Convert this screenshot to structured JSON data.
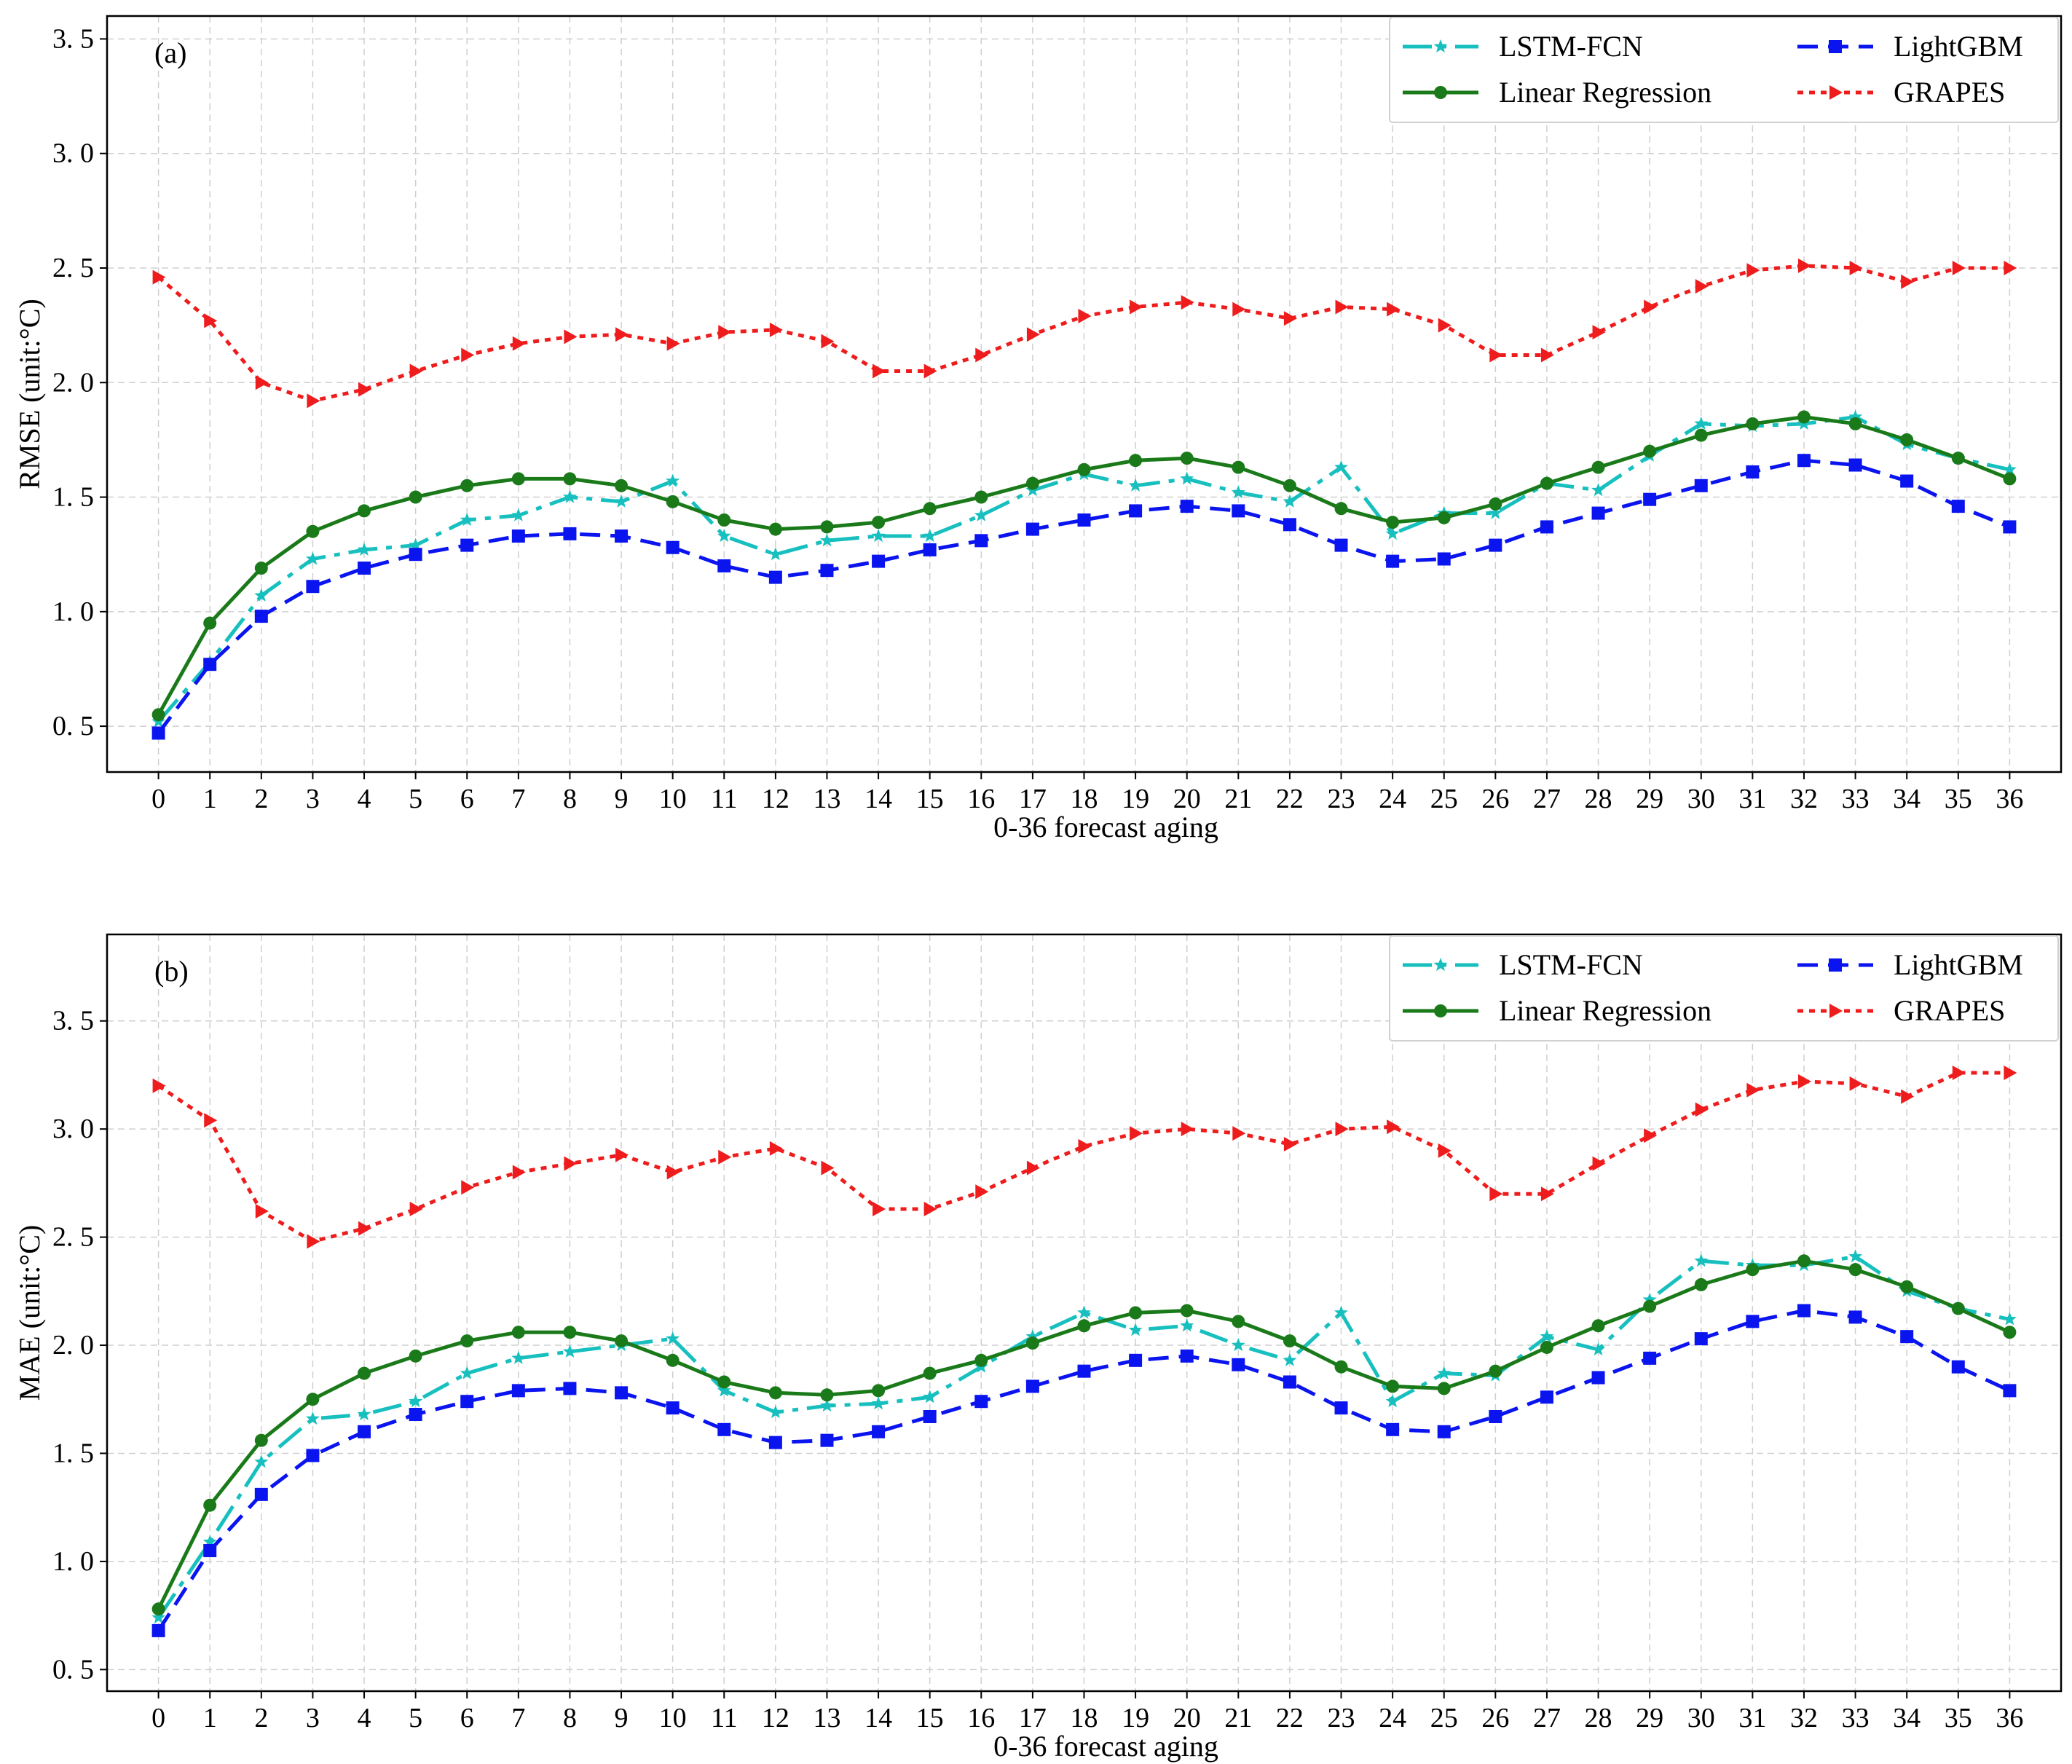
{
  "chart_data": [
    {
      "type": "line",
      "panel_label": "(a)",
      "ylabel": "RMSE (unit:°C)",
      "xlabel": "0-36 forecast aging",
      "xlim": [
        -1,
        37
      ],
      "ylim": [
        0.3,
        3.6
      ],
      "yticks": [
        0.5,
        1.0,
        1.5,
        2.0,
        2.5,
        3.0,
        3.5
      ],
      "ytick_labels": [
        "0. 5",
        "1. 0",
        "1. 5",
        "2. 0",
        "2. 5",
        "3. 0",
        "3. 5"
      ],
      "categories": [
        0,
        1,
        2,
        3,
        4,
        5,
        6,
        7,
        8,
        9,
        10,
        11,
        12,
        13,
        14,
        15,
        16,
        17,
        18,
        19,
        20,
        21,
        22,
        23,
        24,
        25,
        26,
        27,
        28,
        29,
        30,
        31,
        32,
        33,
        34,
        35,
        36
      ],
      "grid": true,
      "legend_position": "top-right",
      "series": [
        {
          "name": "LSTM-FCN",
          "color": "#17bfbf",
          "dash": "40,12,8,12",
          "marker": "star",
          "values": [
            0.52,
            0.78,
            1.07,
            1.23,
            1.27,
            1.29,
            1.4,
            1.42,
            1.5,
            1.48,
            1.57,
            1.33,
            1.25,
            1.31,
            1.33,
            1.33,
            1.42,
            1.53,
            1.6,
            1.55,
            1.58,
            1.52,
            1.48,
            1.63,
            1.34,
            1.43,
            1.43,
            1.56,
            1.53,
            1.68,
            1.82,
            1.81,
            1.82,
            1.85,
            1.73,
            1.67,
            1.62
          ]
        },
        {
          "name": "LightGBM",
          "color": "#0a14ef",
          "dash": "28,14",
          "marker": "square",
          "values": [
            0.47,
            0.77,
            0.98,
            1.11,
            1.19,
            1.25,
            1.29,
            1.33,
            1.34,
            1.33,
            1.28,
            1.2,
            1.15,
            1.18,
            1.22,
            1.27,
            1.31,
            1.36,
            1.4,
            1.44,
            1.46,
            1.44,
            1.38,
            1.29,
            1.22,
            1.23,
            1.29,
            1.37,
            1.43,
            1.49,
            1.55,
            1.61,
            1.66,
            1.64,
            1.57,
            1.46,
            1.37
          ]
        },
        {
          "name": "Linear Regression",
          "color": "#1a7a1a",
          "dash": "",
          "marker": "circle",
          "values": [
            0.55,
            0.95,
            1.19,
            1.35,
            1.44,
            1.5,
            1.55,
            1.58,
            1.58,
            1.55,
            1.48,
            1.4,
            1.36,
            1.37,
            1.39,
            1.45,
            1.5,
            1.56,
            1.62,
            1.66,
            1.67,
            1.63,
            1.55,
            1.45,
            1.39,
            1.41,
            1.47,
            1.56,
            1.63,
            1.7,
            1.77,
            1.82,
            1.85,
            1.82,
            1.75,
            1.67,
            1.58
          ]
        },
        {
          "name": "GRAPES",
          "color": "#ee1c1c",
          "dash": "8,8",
          "marker": "triangle",
          "values": [
            2.46,
            2.27,
            2.0,
            1.92,
            1.97,
            2.05,
            2.12,
            2.17,
            2.2,
            2.21,
            2.17,
            2.22,
            2.23,
            2.18,
            2.05,
            2.05,
            2.12,
            2.21,
            2.29,
            2.33,
            2.35,
            2.32,
            2.28,
            2.33,
            2.32,
            2.25,
            2.12,
            2.12,
            2.22,
            2.33,
            2.42,
            2.49,
            2.51,
            2.5,
            2.44,
            2.5,
            2.5
          ]
        }
      ]
    },
    {
      "type": "line",
      "panel_label": "(b)",
      "ylabel": "MAE (unit:°C)",
      "xlabel": "0-36 forecast aging",
      "xlim": [
        -1,
        37
      ],
      "ylim": [
        0.4,
        3.9
      ],
      "yticks": [
        0.5,
        1.0,
        1.5,
        2.0,
        2.5,
        3.0,
        3.5
      ],
      "ytick_labels": [
        "0. 5",
        "1. 0",
        "1. 5",
        "2. 0",
        "2. 5",
        "3. 0",
        "3. 5"
      ],
      "categories": [
        0,
        1,
        2,
        3,
        4,
        5,
        6,
        7,
        8,
        9,
        10,
        11,
        12,
        13,
        14,
        15,
        16,
        17,
        18,
        19,
        20,
        21,
        22,
        23,
        24,
        25,
        26,
        27,
        28,
        29,
        30,
        31,
        32,
        33,
        34,
        35,
        36
      ],
      "grid": true,
      "legend_position": "top-right",
      "series": [
        {
          "name": "LSTM-FCN",
          "color": "#17bfbf",
          "dash": "40,12,8,12",
          "marker": "star",
          "values": [
            0.74,
            1.09,
            1.46,
            1.66,
            1.68,
            1.74,
            1.87,
            1.94,
            1.97,
            2.0,
            2.03,
            1.79,
            1.69,
            1.72,
            1.73,
            1.76,
            1.9,
            2.04,
            2.15,
            2.07,
            2.09,
            2.0,
            1.93,
            2.15,
            1.74,
            1.87,
            1.86,
            2.04,
            1.98,
            2.21,
            2.39,
            2.37,
            2.37,
            2.41,
            2.25,
            2.17,
            2.12
          ]
        },
        {
          "name": "LightGBM",
          "color": "#0a14ef",
          "dash": "28,14",
          "marker": "square",
          "values": [
            0.68,
            1.05,
            1.31,
            1.49,
            1.6,
            1.68,
            1.74,
            1.79,
            1.8,
            1.78,
            1.71,
            1.61,
            1.55,
            1.56,
            1.6,
            1.67,
            1.74,
            1.81,
            1.88,
            1.93,
            1.95,
            1.91,
            1.83,
            1.71,
            1.61,
            1.6,
            1.67,
            1.76,
            1.85,
            1.94,
            2.03,
            2.11,
            2.16,
            2.13,
            2.04,
            1.9,
            1.79
          ]
        },
        {
          "name": "Linear Regression",
          "color": "#1a7a1a",
          "dash": "",
          "marker": "circle",
          "values": [
            0.78,
            1.26,
            1.56,
            1.75,
            1.87,
            1.95,
            2.02,
            2.06,
            2.06,
            2.02,
            1.93,
            1.83,
            1.78,
            1.77,
            1.79,
            1.87,
            1.93,
            2.01,
            2.09,
            2.15,
            2.16,
            2.11,
            2.02,
            1.9,
            1.81,
            1.8,
            1.88,
            1.99,
            2.09,
            2.18,
            2.28,
            2.35,
            2.39,
            2.35,
            2.27,
            2.17,
            2.06
          ]
        },
        {
          "name": "GRAPES",
          "color": "#ee1c1c",
          "dash": "8,8",
          "marker": "triangle",
          "values": [
            3.2,
            3.04,
            2.62,
            2.48,
            2.54,
            2.63,
            2.73,
            2.8,
            2.84,
            2.88,
            2.8,
            2.87,
            2.91,
            2.82,
            2.63,
            2.63,
            2.71,
            2.82,
            2.92,
            2.98,
            3.0,
            2.98,
            2.93,
            3.0,
            3.01,
            2.9,
            2.7,
            2.7,
            2.84,
            2.97,
            3.09,
            3.18,
            3.22,
            3.21,
            3.15,
            3.26,
            3.26
          ]
        }
      ]
    }
  ]
}
